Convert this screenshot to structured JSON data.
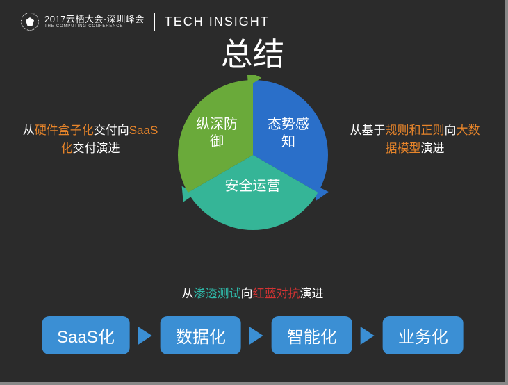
{
  "header": {
    "logo_text": "2017云栖大会·深圳峰会",
    "logo_sub": "THE COMPUTING CONFERENCE",
    "tech_insight_bold": "TECH",
    "tech_insight_thin": "INSIGHT"
  },
  "title": "总结",
  "cycle": {
    "type": "pie-cycle",
    "radius": 108,
    "arrow_color": "#1a5a8a",
    "slices": [
      {
        "label": "态势感\n知",
        "color": "#2a6fc9",
        "start": -90,
        "end": 30
      },
      {
        "label": "安全运营",
        "color": "#35b597",
        "start": 30,
        "end": 150
      },
      {
        "label": "纵深防\n御",
        "color": "#6aaa3a",
        "start": 150,
        "end": 270
      }
    ],
    "label_fontsize": 20,
    "label_color": "#ffffff"
  },
  "annotations": {
    "left": {
      "pre": "从",
      "hl1": "硬件盒子化",
      "mid": "交付向",
      "hl2": "SaaS化",
      "post": "交付演进",
      "hl1_color": "#e8852a",
      "hl2_color": "#e8852a"
    },
    "right": {
      "pre": "从基于",
      "hl1": "规则和正则",
      "mid": "向",
      "hl2": "大数据模型",
      "post": "演进",
      "hl1_color": "#e8852a",
      "hl2_color": "#e8852a"
    },
    "bottom": {
      "pre": "从",
      "hl1": "渗透测试",
      "mid": "向",
      "hl2": "红蓝对抗",
      "post": "演进",
      "hl1_color": "#2fb8a8",
      "hl2_color": "#d33333"
    }
  },
  "flow": {
    "box_color": "#3b8fd4",
    "box_text_color": "#ffffff",
    "box_fontsize": 24,
    "box_radius": 10,
    "arrow_color": "#3b8fd4",
    "items": [
      "SaaS化",
      "数据化",
      "智能化",
      "业务化"
    ]
  },
  "background_color": "#2b2b2b"
}
